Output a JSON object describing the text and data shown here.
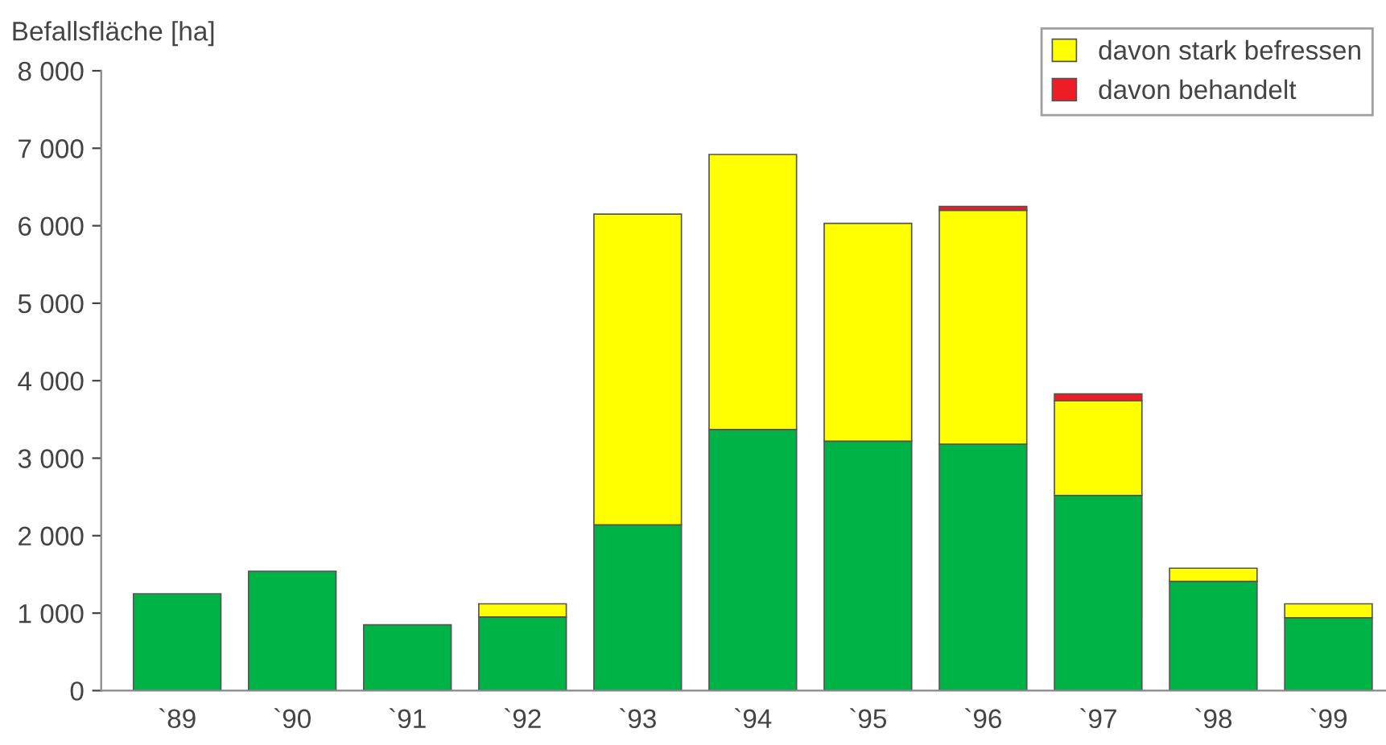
{
  "chart_data": {
    "type": "bar",
    "stacked": true,
    "ylabel": "Befallsfläche [ha]",
    "categories": [
      "`89",
      "`90",
      "`91",
      "`92",
      "`93",
      "`94",
      "`95",
      "`96",
      "`97",
      "`98",
      "`99"
    ],
    "series": [
      {
        "color": "#00b347",
        "values": [
          1250,
          1540,
          850,
          950,
          2140,
          3370,
          3220,
          3180,
          2520,
          1410,
          940
        ]
      },
      {
        "name": "davon stark befressen",
        "color": "#ffff00",
        "values": [
          0,
          0,
          0,
          170,
          4010,
          3550,
          2810,
          3020,
          1220,
          170,
          180
        ]
      },
      {
        "name": "davon behandelt",
        "color": "#ee1c25",
        "values": [
          0,
          0,
          0,
          0,
          0,
          0,
          0,
          50,
          90,
          0,
          0
        ]
      }
    ],
    "ylim": [
      0,
      8000
    ],
    "yticks": [
      {
        "value": 0,
        "label": "0"
      },
      {
        "value": 1000,
        "label": "1 000"
      },
      {
        "value": 2000,
        "label": "2 000"
      },
      {
        "value": 3000,
        "label": "3 000"
      },
      {
        "value": 4000,
        "label": "4 000"
      },
      {
        "value": 5000,
        "label": "5 000"
      },
      {
        "value": 6000,
        "label": "6 000"
      },
      {
        "value": 7000,
        "label": "7 000"
      },
      {
        "value": 8000,
        "label": "8 000"
      }
    ],
    "grid": false,
    "legend": "top right"
  }
}
